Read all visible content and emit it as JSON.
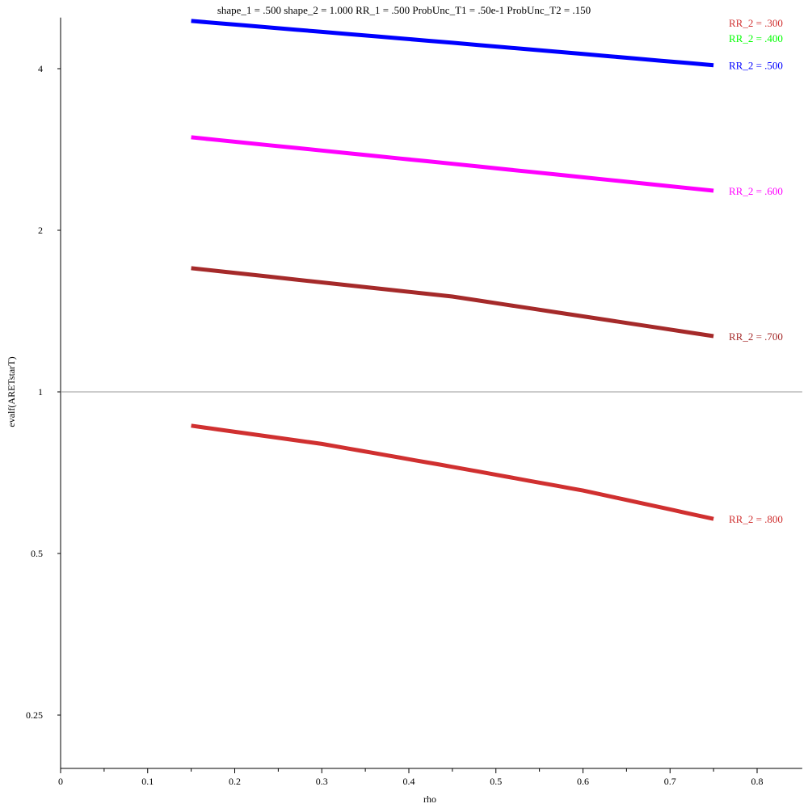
{
  "chart_data": {
    "type": "line",
    "title": "shape_1 = .500  shape_2 = 1.000  RR_1 = .500  ProbUnc_T1 = .50e-1  ProbUnc_T2 = .150",
    "xlabel": "rho",
    "ylabel": "evalf(ARETstarT)",
    "xlim": [
      0,
      0.85
    ],
    "ylim": [
      0.2,
      4.98
    ],
    "yscale": "log",
    "x_ticks": [
      0,
      0.1,
      0.2,
      0.3,
      0.4,
      0.5,
      0.6,
      0.7,
      0.8
    ],
    "x_tick_labels": [
      "0",
      "0.1",
      "0.2",
      "0.3",
      "0.4",
      "0.5",
      "0.6",
      "0.7",
      "0.8"
    ],
    "y_ticks": [
      0.25,
      0.5,
      1,
      2,
      4
    ],
    "y_tick_labels": [
      "0.25",
      "0.5",
      "1",
      "2",
      "4"
    ],
    "reference_line": 1,
    "series": [
      {
        "name": "RR_2 = .300",
        "color": "#d03030",
        "x": [],
        "y": []
      },
      {
        "name": "RR_2 = .400",
        "color": "#00ff00",
        "x": [],
        "y": []
      },
      {
        "name": "RR_2 = .500",
        "color": "#0000ff",
        "x": [
          0.15,
          0.45,
          0.75
        ],
        "y": [
          4.91,
          4.47,
          4.06
        ]
      },
      {
        "name": "RR_2 = .600",
        "color": "#ff00ff",
        "x": [
          0.15,
          0.45,
          0.75
        ],
        "y": [
          2.98,
          2.66,
          2.37
        ]
      },
      {
        "name": "RR_2 = .700",
        "color": "#a52a2a",
        "x": [
          0.15,
          0.45,
          0.75
        ],
        "y": [
          1.7,
          1.505,
          1.27
        ]
      },
      {
        "name": "RR_2 = .800",
        "color": "#d03030",
        "x": [
          0.15,
          0.3,
          0.45,
          0.6,
          0.75
        ],
        "y": [
          0.865,
          0.8,
          0.725,
          0.655,
          0.58
        ]
      }
    ]
  }
}
